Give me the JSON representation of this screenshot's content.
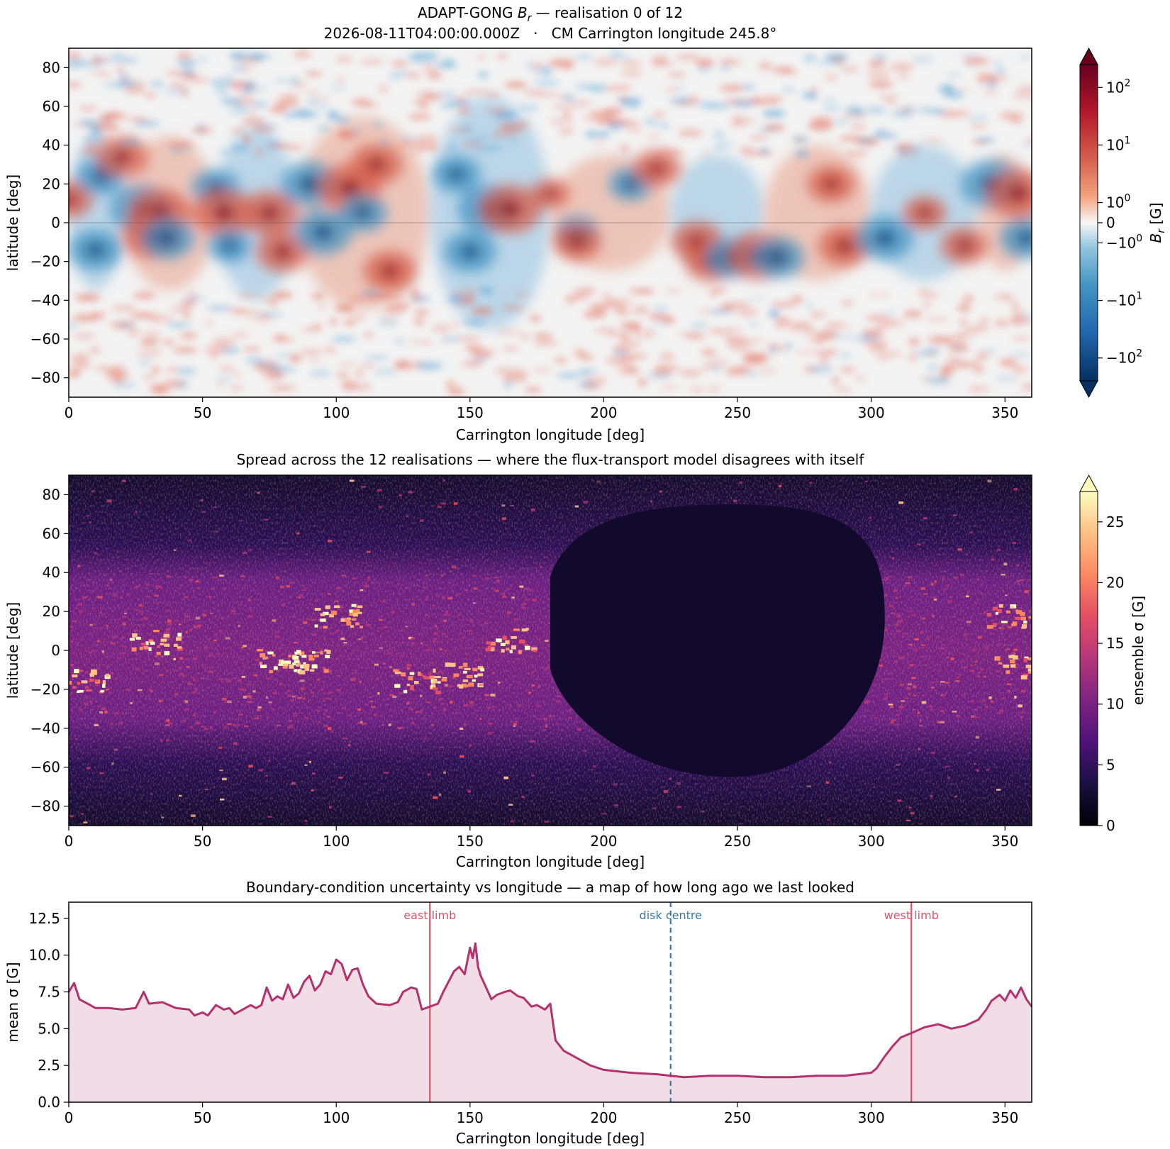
{
  "chart_data": [
    {
      "type": "heatmap",
      "title_prefix": "ADAPT-GONG ",
      "title_var": "B",
      "title_sub": "r",
      "title_suffix": " — realisation 0 of 12",
      "subtitle": "2026-08-11T04:00:00.000Z   ·   CM Carrington longitude 245.8°",
      "xlabel": "Carrington longitude [deg]",
      "ylabel": "latitude [deg]",
      "xlim": [
        0,
        360
      ],
      "ylim": [
        -90,
        90
      ],
      "xticks": [
        0,
        50,
        100,
        150,
        200,
        250,
        300,
        350
      ],
      "yticks": [
        80,
        60,
        40,
        20,
        0,
        -20,
        -40,
        -60,
        -80
      ],
      "colormap": "diverging red-blue (symlog)",
      "colors": {
        "positive": "#67001f",
        "mid": "#f7f7f7",
        "negative": "#053061"
      },
      "colorbar": {
        "label_var": "B",
        "label_sub": "r",
        "label_unit": " [G]",
        "ticks": [
          {
            "base": "10",
            "exp": "2",
            "value": 100
          },
          {
            "base": "10",
            "exp": "1",
            "value": 10
          },
          {
            "base": "10",
            "exp": "0",
            "value": 1
          },
          {
            "base": "0",
            "exp": "",
            "value": 0
          },
          {
            "base": "−10",
            "exp": "0",
            "value": -1
          },
          {
            "base": "−10",
            "exp": "1",
            "value": -10
          },
          {
            "base": "−10",
            "exp": "2",
            "value": -100
          }
        ],
        "extend": "both"
      },
      "features": [
        {
          "lon": 0,
          "lat": 12,
          "sign": 1,
          "strength": 0.7
        },
        {
          "lon": 10,
          "lat": -14,
          "sign": -1,
          "strength": 0.8
        },
        {
          "lon": 12,
          "lat": 24,
          "sign": -1,
          "strength": 0.7
        },
        {
          "lon": 20,
          "lat": 34,
          "sign": 1,
          "strength": 0.8
        },
        {
          "lon": 27,
          "lat": 7,
          "sign": -1,
          "strength": 1.0
        },
        {
          "lon": 34,
          "lat": 5,
          "sign": 1,
          "strength": 1.0
        },
        {
          "lon": 31,
          "lat": -7,
          "sign": 1,
          "strength": 0.9
        },
        {
          "lon": 37,
          "lat": -8,
          "sign": -1,
          "strength": 0.8
        },
        {
          "lon": 55,
          "lat": 18,
          "sign": -1,
          "strength": 0.7
        },
        {
          "lon": 58,
          "lat": 5,
          "sign": 1,
          "strength": 1.0
        },
        {
          "lon": 60,
          "lat": -12,
          "sign": -1,
          "strength": 0.6
        },
        {
          "lon": 75,
          "lat": 5,
          "sign": 1,
          "strength": 0.9
        },
        {
          "lon": 80,
          "lat": -15,
          "sign": 1,
          "strength": 0.8
        },
        {
          "lon": 90,
          "lat": 20,
          "sign": -1,
          "strength": 0.9
        },
        {
          "lon": 95,
          "lat": -5,
          "sign": -1,
          "strength": 0.9
        },
        {
          "lon": 105,
          "lat": 18,
          "sign": 1,
          "strength": 1.0
        },
        {
          "lon": 110,
          "lat": 5,
          "sign": -1,
          "strength": 0.7
        },
        {
          "lon": 115,
          "lat": 30,
          "sign": 1,
          "strength": 0.8
        },
        {
          "lon": 120,
          "lat": -25,
          "sign": 1,
          "strength": 0.8
        },
        {
          "lon": 145,
          "lat": 25,
          "sign": -1,
          "strength": 0.7
        },
        {
          "lon": 150,
          "lat": -15,
          "sign": -1,
          "strength": 0.8
        },
        {
          "lon": 157,
          "lat": 7,
          "sign": -1,
          "strength": 1.0
        },
        {
          "lon": 165,
          "lat": 7,
          "sign": 1,
          "strength": 1.0
        },
        {
          "lon": 180,
          "lat": 15,
          "sign": 1,
          "strength": 0.5
        },
        {
          "lon": 190,
          "lat": -5,
          "sign": -1,
          "strength": 0.6
        },
        {
          "lon": 190,
          "lat": -10,
          "sign": 1,
          "strength": 0.7
        },
        {
          "lon": 210,
          "lat": 20,
          "sign": -1,
          "strength": 0.6
        },
        {
          "lon": 220,
          "lat": 28,
          "sign": 1,
          "strength": 0.7
        },
        {
          "lon": 235,
          "lat": -10,
          "sign": 1,
          "strength": 0.8
        },
        {
          "lon": 240,
          "lat": -20,
          "sign": 1,
          "strength": 0.8
        },
        {
          "lon": 248,
          "lat": -18,
          "sign": -1,
          "strength": 0.8
        },
        {
          "lon": 258,
          "lat": -17,
          "sign": 1,
          "strength": 1.0
        },
        {
          "lon": 265,
          "lat": -18,
          "sign": -1,
          "strength": 0.8
        },
        {
          "lon": 285,
          "lat": 20,
          "sign": 1,
          "strength": 0.7
        },
        {
          "lon": 290,
          "lat": -12,
          "sign": 1,
          "strength": 0.8
        },
        {
          "lon": 305,
          "lat": -8,
          "sign": -1,
          "strength": 0.9
        },
        {
          "lon": 320,
          "lat": 5,
          "sign": 1,
          "strength": 0.6
        },
        {
          "lon": 335,
          "lat": -12,
          "sign": 1,
          "strength": 0.7
        },
        {
          "lon": 345,
          "lat": 20,
          "sign": -1,
          "strength": 1.0
        },
        {
          "lon": 355,
          "lat": 15,
          "sign": 1,
          "strength": 1.0
        },
        {
          "lon": 358,
          "lat": -8,
          "sign": -1,
          "strength": 0.8
        }
      ]
    },
    {
      "type": "heatmap",
      "title": "Spread across the 12 realisations — where the flux-transport model disagrees with itself",
      "xlabel": "Carrington longitude [deg]",
      "ylabel": "latitude [deg]",
      "xlim": [
        0,
        360
      ],
      "ylim": [
        -90,
        90
      ],
      "xticks": [
        0,
        50,
        100,
        150,
        200,
        250,
        300,
        350
      ],
      "yticks": [
        80,
        60,
        40,
        20,
        0,
        -20,
        -40,
        -60,
        -80
      ],
      "colormap": "magma",
      "colorbar": {
        "label_var": "ensemble σ",
        "label_unit": " [G]",
        "ticks": [
          0,
          5,
          10,
          15,
          20,
          25
        ],
        "range": [
          0,
          27.5
        ],
        "extend": "max"
      },
      "low_spread_region": {
        "lon_range": [
          180,
          305
        ],
        "lat_range": [
          -65,
          75
        ],
        "sigma": 1.5
      },
      "hotspots": [
        {
          "lon": 100,
          "lat": 18,
          "sigma": 27
        },
        {
          "lon": 32,
          "lat": 5,
          "sigma": 24
        },
        {
          "lon": 78,
          "lat": -5,
          "sigma": 27
        },
        {
          "lon": 88,
          "lat": -5,
          "sigma": 25
        },
        {
          "lon": 145,
          "lat": -12,
          "sigma": 27
        },
        {
          "lon": 165,
          "lat": 6,
          "sigma": 24
        },
        {
          "lon": 130,
          "lat": -15,
          "sigma": 22
        },
        {
          "lon": 352,
          "lat": 18,
          "sigma": 24
        },
        {
          "lon": 355,
          "lat": -8,
          "sigma": 20
        },
        {
          "lon": 5,
          "lat": -15,
          "sigma": 20
        }
      ]
    },
    {
      "type": "area",
      "title": "Boundary-condition uncertainty vs longitude — a map of how long ago we last looked",
      "xlabel": "Carrington longitude [deg]",
      "ylabel_var": "mean σ",
      "ylabel_unit": " [G]",
      "xlim": [
        0,
        360
      ],
      "ylim": [
        0,
        13.6
      ],
      "xticks": [
        0,
        50,
        100,
        150,
        200,
        250,
        300,
        350
      ],
      "yticks": [
        "0.0",
        "2.5",
        "5.0",
        "7.5",
        "10.0",
        "12.5"
      ],
      "line_color": "#b5316e",
      "fill_color": "#f2dde6",
      "x": [
        0,
        2,
        4,
        6,
        8,
        10,
        15,
        20,
        25,
        28,
        30,
        35,
        40,
        45,
        47,
        50,
        52,
        55,
        58,
        60,
        62,
        65,
        68,
        70,
        72,
        74,
        76,
        78,
        80,
        82,
        84,
        86,
        88,
        90,
        92,
        94,
        96,
        98,
        100,
        102,
        104,
        106,
        108,
        110,
        112,
        115,
        120,
        123,
        125,
        128,
        130,
        132,
        135,
        138,
        140,
        142,
        144,
        146,
        148,
        150,
        151,
        152,
        153,
        154,
        155,
        158,
        160,
        163,
        165,
        168,
        170,
        173,
        175,
        178,
        180,
        182,
        185,
        190,
        195,
        200,
        210,
        220,
        225,
        230,
        240,
        250,
        260,
        270,
        280,
        290,
        295,
        300,
        302,
        305,
        308,
        311,
        315,
        320,
        325,
        330,
        335,
        340,
        343,
        345,
        348,
        350,
        352,
        354,
        356,
        358,
        360
      ],
      "values": [
        7.5,
        8.1,
        7.0,
        6.8,
        6.6,
        6.4,
        6.4,
        6.3,
        6.4,
        7.5,
        6.7,
        6.8,
        6.4,
        6.3,
        5.9,
        6.1,
        5.9,
        6.6,
        6.3,
        6.4,
        6.0,
        6.3,
        6.6,
        6.4,
        6.6,
        7.8,
        6.9,
        7.2,
        7.0,
        8.0,
        7.1,
        7.4,
        8.2,
        8.6,
        7.6,
        8.0,
        8.9,
        8.7,
        9.7,
        9.4,
        8.3,
        9.0,
        9.1,
        8.0,
        7.2,
        6.7,
        6.6,
        6.8,
        7.5,
        7.8,
        7.7,
        6.3,
        6.5,
        6.7,
        7.5,
        8.2,
        8.9,
        9.2,
        8.7,
        10.5,
        9.8,
        10.8,
        9.2,
        8.6,
        8.2,
        7.0,
        7.3,
        7.5,
        7.6,
        7.2,
        7.1,
        6.5,
        6.6,
        6.3,
        6.7,
        4.2,
        3.5,
        3.0,
        2.5,
        2.2,
        2.0,
        1.9,
        1.8,
        1.7,
        1.8,
        1.8,
        1.7,
        1.7,
        1.8,
        1.8,
        1.9,
        2.0,
        2.3,
        3.1,
        3.8,
        4.4,
        4.7,
        5.1,
        5.3,
        5.0,
        5.2,
        5.6,
        6.3,
        6.9,
        7.3,
        6.9,
        7.6,
        7.1,
        7.8,
        7.0,
        6.5
      ],
      "markers": [
        {
          "x": 135,
          "label": "east limb",
          "color": "#d95368",
          "style": "solid"
        },
        {
          "x": 225,
          "label": "disk centre",
          "color": "#3b78a0",
          "style": "dashed"
        },
        {
          "x": 315,
          "label": "west limb",
          "color": "#d95368",
          "style": "solid"
        }
      ]
    }
  ]
}
